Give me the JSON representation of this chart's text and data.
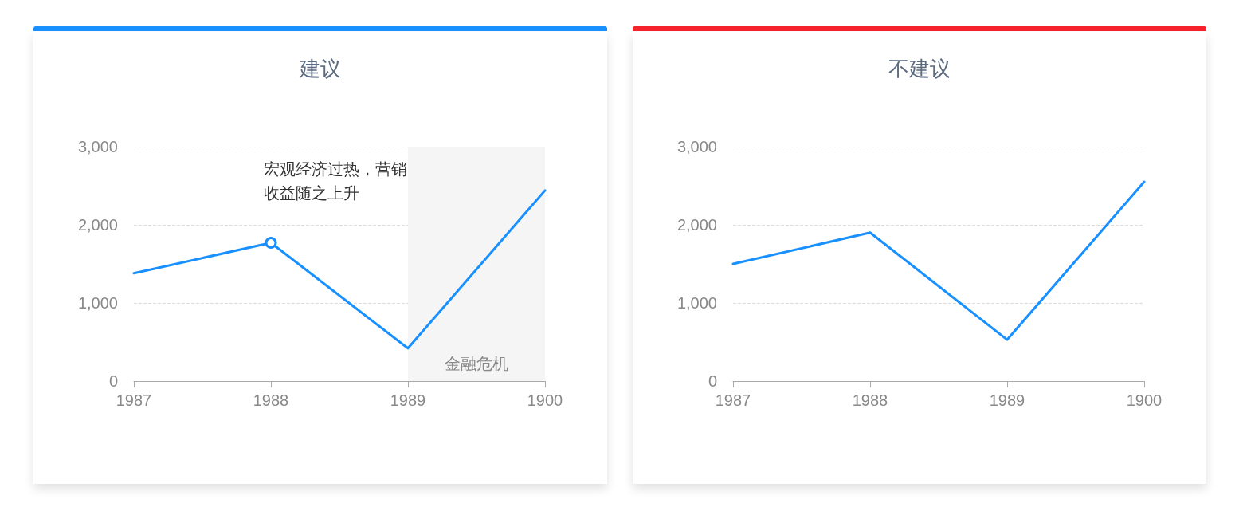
{
  "chart_data": [
    {
      "type": "line",
      "title": "建议",
      "categories": [
        "1987",
        "1988",
        "1989",
        "1900"
      ],
      "series": [
        {
          "color": "#1890ff",
          "values": [
            1380,
            1770,
            420,
            2440
          ]
        }
      ],
      "ylim": [
        0,
        3000
      ],
      "yticks": [
        0,
        {
          "value": 1000,
          "label": "1,000"
        },
        {
          "value": 2000,
          "label": "2,000"
        },
        {
          "value": 3000,
          "label": "3,000"
        }
      ],
      "grid": "y",
      "marker": "none",
      "line_style": "solid",
      "annotations": [
        {
          "text": "宏观经济过热，营销收益随之上升",
          "x": "1988",
          "y": 1770
        }
      ],
      "bands": [
        {
          "axis": "x",
          "from": "1989",
          "to": "1900",
          "label": "金融危机",
          "color": "#f5f5f5"
        }
      ]
    },
    {
      "type": "line",
      "title": "不建议",
      "categories": [
        "1987",
        "1988",
        "1989",
        "1900"
      ],
      "series": [
        {
          "color": "#1890ff",
          "values": [
            1500,
            1900,
            530,
            2550
          ]
        }
      ],
      "ylim": [
        0,
        3000
      ],
      "yticks": [
        0,
        {
          "value": 1000,
          "label": "1,000"
        },
        {
          "value": 2000,
          "label": "2,000"
        },
        {
          "value": 3000,
          "label": "3,000"
        }
      ],
      "grid": "y",
      "marker": "none",
      "line_style": "solid"
    }
  ]
}
